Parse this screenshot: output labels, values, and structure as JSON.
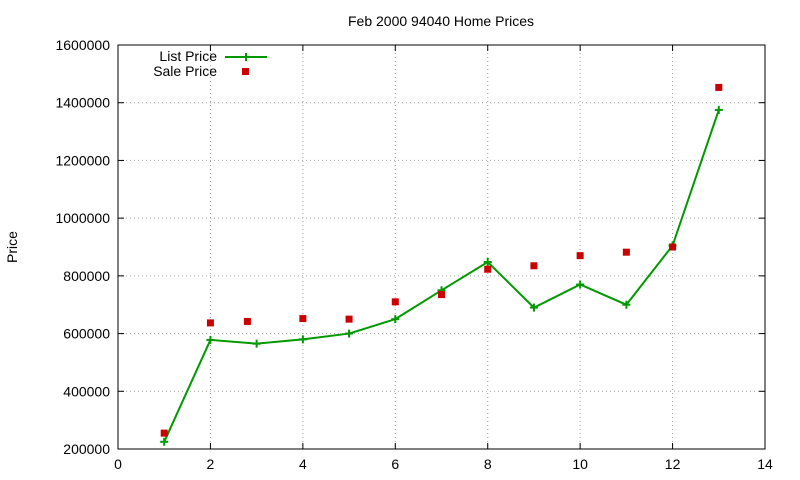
{
  "chart_data": {
    "type": "line",
    "title": "Feb 2000 94040 Home Prices",
    "xlabel": "",
    "ylabel": "Price",
    "xlim": [
      0,
      14
    ],
    "ylim": [
      200000,
      1600000
    ],
    "xticks": [
      "0",
      "2",
      "4",
      "6",
      "8",
      "10",
      "12",
      "14"
    ],
    "yticks": [
      "200000",
      "400000",
      "600000",
      "800000",
      "1000000",
      "1200000",
      "1400000",
      "1600000"
    ],
    "grid": true,
    "legend_position": "top-left",
    "series": [
      {
        "name": "List Price",
        "style": "line+cross",
        "color": "#009900",
        "x": [
          1,
          2,
          3,
          4,
          5,
          6,
          7,
          8,
          9,
          10,
          11,
          12,
          13
        ],
        "y": [
          225000,
          578000,
          565000,
          580000,
          600000,
          650000,
          750000,
          848000,
          690000,
          770000,
          700000,
          905000,
          1375000
        ]
      },
      {
        "name": "Sale Price",
        "style": "square",
        "color": "#cc0000",
        "x": [
          1,
          2,
          2.8,
          4,
          5,
          6,
          7,
          8,
          9,
          10,
          11,
          12,
          13
        ],
        "y": [
          255000,
          637000,
          642000,
          652000,
          650000,
          710000,
          735000,
          823000,
          835000,
          870000,
          882000,
          900000,
          1453000
        ]
      }
    ]
  }
}
